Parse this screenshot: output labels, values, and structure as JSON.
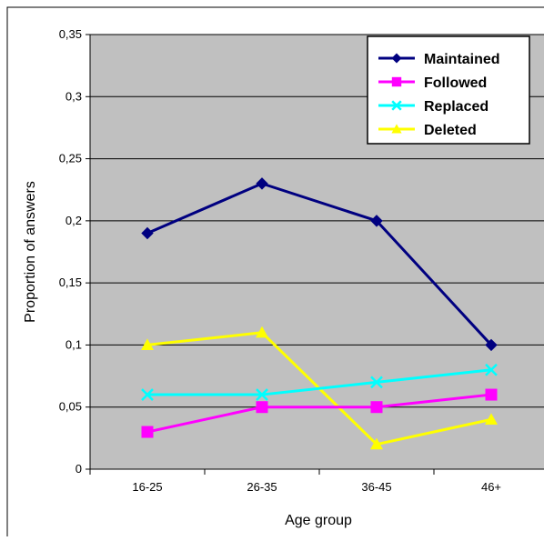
{
  "chart_data": {
    "type": "line",
    "title": "",
    "xlabel": "Age group",
    "ylabel": "Proportion of answers",
    "categories": [
      "16-25",
      "26-35",
      "36-45",
      "46+"
    ],
    "ylim": [
      0,
      0.35
    ],
    "yticks": [
      0,
      0.05,
      0.1,
      0.15,
      0.2,
      0.25,
      0.3,
      0.35
    ],
    "ytick_labels": [
      "0",
      "0,05",
      "0,1",
      "0,15",
      "0,2",
      "0,25",
      "0,3",
      "0,35"
    ],
    "grid": true,
    "plot_background": "#c0c0c0",
    "legend_position": "top-right",
    "series": [
      {
        "name": "Maintained",
        "values": [
          0.19,
          0.23,
          0.2,
          0.1
        ],
        "color": "#000080",
        "marker": "diamond"
      },
      {
        "name": "Followed",
        "values": [
          0.03,
          0.05,
          0.05,
          0.06
        ],
        "color": "#ff00ff",
        "marker": "square"
      },
      {
        "name": "Replaced",
        "values": [
          0.06,
          0.06,
          0.07,
          0.08
        ],
        "color": "#00ffff",
        "marker": "x"
      },
      {
        "name": "Deleted",
        "values": [
          0.1,
          0.11,
          0.02,
          0.04
        ],
        "color": "#ffff00",
        "marker": "triangle"
      }
    ]
  }
}
